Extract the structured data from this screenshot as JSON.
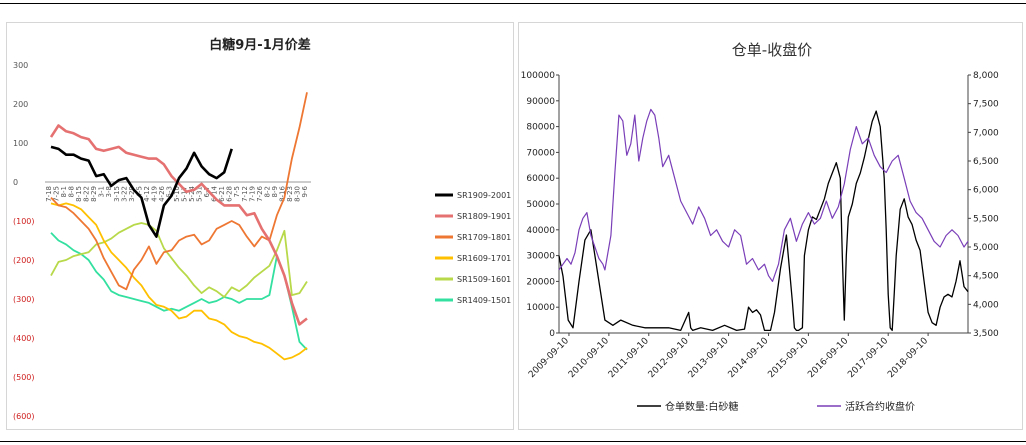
{
  "chart_data": [
    {
      "type": "line",
      "title": "白糖9月-1月价差",
      "ylim": [
        -600,
        300
      ],
      "yticks": [
        "300",
        "200",
        "100",
        "0",
        "(100)",
        "(200)",
        "(300)",
        "(400)",
        "(500)",
        "(600)"
      ],
      "ytick_values": [
        300,
        200,
        100,
        0,
        -100,
        -200,
        -300,
        -400,
        -500,
        -600
      ],
      "categories": [
        "7-18",
        "7-25",
        "8-1",
        "8-8",
        "8-15",
        "8-22",
        "8-29",
        "3-1",
        "3-8",
        "3-15",
        "3-22",
        "3-29",
        "4-5",
        "4-12",
        "4-19",
        "4-26",
        "5-3",
        "5-10",
        "5-17",
        "5-24",
        "5-31",
        "6-7",
        "6-14",
        "6-21",
        "6-28",
        "7-5",
        "7-12",
        "7-19",
        "7-26",
        "8-2",
        "8-9",
        "8-16",
        "8-23",
        "8-30",
        "9-6"
      ],
      "series": [
        {
          "name": "SR1909-2001",
          "color": "#000000",
          "width": 2.6,
          "values": [
            90,
            85,
            70,
            70,
            60,
            55,
            15,
            20,
            -10,
            5,
            10,
            -20,
            -40,
            -110,
            -140,
            -60,
            -35,
            10,
            35,
            75,
            40,
            20,
            10,
            25,
            85,
            null,
            null,
            null,
            null,
            null,
            null,
            null,
            null,
            null,
            null
          ]
        },
        {
          "name": "SR1809-1901",
          "color": "#e57171",
          "width": 2.6,
          "values": [
            115,
            145,
            130,
            125,
            115,
            110,
            85,
            80,
            85,
            90,
            75,
            70,
            65,
            60,
            60,
            45,
            15,
            -5,
            -25,
            -20,
            -5,
            -25,
            -45,
            -60,
            -60,
            -60,
            -85,
            -80,
            -120,
            -150,
            -190,
            -240,
            -310,
            -365,
            -350
          ]
        },
        {
          "name": "SR1709-1801",
          "color": "#ee7733",
          "width": 1.8,
          "values": [
            -40,
            -60,
            -65,
            -80,
            -100,
            -120,
            -150,
            -195,
            -230,
            -265,
            -275,
            -225,
            -200,
            -165,
            -210,
            -180,
            -175,
            -150,
            -140,
            -135,
            -160,
            -150,
            -120,
            -110,
            -100,
            -110,
            -140,
            -165,
            -140,
            -150,
            -85,
            -40,
            60,
            140,
            230
          ]
        },
        {
          "name": "SR1609-1701",
          "color": "#ffc000",
          "width": 1.8,
          "values": [
            -55,
            -60,
            -55,
            -60,
            -70,
            -90,
            -110,
            -150,
            -180,
            -200,
            -220,
            -245,
            -265,
            -295,
            -315,
            -320,
            -330,
            -350,
            -345,
            -330,
            -330,
            -350,
            -355,
            -365,
            -385,
            -395,
            -400,
            -410,
            -415,
            -425,
            -440,
            -455,
            -450,
            -440,
            -425
          ]
        },
        {
          "name": "SR1509-1601",
          "color": "#b8d94a",
          "width": 1.8,
          "values": [
            -240,
            -205,
            -200,
            -190,
            -185,
            -180,
            -160,
            -155,
            -145,
            -130,
            -120,
            -110,
            -105,
            -110,
            -125,
            -170,
            -195,
            -220,
            -240,
            -265,
            -285,
            -270,
            -280,
            -295,
            -270,
            -280,
            -265,
            -245,
            -230,
            -215,
            -175,
            -125,
            -290,
            -285,
            -255
          ]
        },
        {
          "name": "SR1409-1501",
          "color": "#33e0a0",
          "width": 1.8,
          "values": [
            -130,
            -150,
            -160,
            -175,
            -185,
            -200,
            -230,
            -250,
            -280,
            -290,
            -295,
            -300,
            -305,
            -310,
            -320,
            -330,
            -325,
            -330,
            -320,
            -310,
            -300,
            -310,
            -305,
            -295,
            -300,
            -310,
            -300,
            -300,
            -300,
            -290,
            -190,
            -240,
            -320,
            -410,
            -430
          ]
        }
      ]
    },
    {
      "type": "line",
      "title": "仓单-收盘价",
      "ylim_left": [
        0,
        100000
      ],
      "ylim_right": [
        3500,
        8000
      ],
      "yticks_left": [
        "100000",
        "90000",
        "80000",
        "70000",
        "60000",
        "50000",
        "40000",
        "30000",
        "20000",
        "10000",
        "0"
      ],
      "yticks_left_values": [
        100000,
        90000,
        80000,
        70000,
        60000,
        50000,
        40000,
        30000,
        20000,
        10000,
        0
      ],
      "yticks_right": [
        "8,000",
        "7,500",
        "7,000",
        "6,500",
        "6,000",
        "5,500",
        "5,000",
        "4,500",
        "4,000",
        "3,500"
      ],
      "yticks_right_values": [
        8000,
        7500,
        7000,
        6500,
        6000,
        5500,
        5000,
        4500,
        4000,
        3500
      ],
      "categories": [
        "2009-09-10",
        "2010-09-10",
        "2011-09-10",
        "2012-09-10",
        "2013-09-10",
        "2014-09-10",
        "2015-09-10",
        "2016-09-10",
        "2017-09-10",
        "2018-09-10"
      ],
      "x_start": 2009.45,
      "x_end": 2019.7,
      "category_positions": [
        2009.7,
        2010.7,
        2011.7,
        2012.7,
        2013.7,
        2014.7,
        2015.7,
        2016.7,
        2017.7,
        2018.7
      ],
      "series": [
        {
          "name": "仓单数量:白砂糖",
          "color": "#000000",
          "axis": "left",
          "x": [
            2009.45,
            2009.55,
            2009.68,
            2009.8,
            2009.95,
            2010.1,
            2010.25,
            2010.35,
            2010.45,
            2010.6,
            2010.8,
            2011.0,
            2011.3,
            2011.6,
            2011.9,
            2012.2,
            2012.5,
            2012.7,
            2012.75,
            2012.8,
            2013.0,
            2013.3,
            2013.6,
            2013.9,
            2014.1,
            2014.2,
            2014.3,
            2014.4,
            2014.5,
            2014.6,
            2014.75,
            2014.85,
            2015.0,
            2015.15,
            2015.3,
            2015.35,
            2015.4,
            2015.45,
            2015.55,
            2015.6,
            2015.7,
            2015.8,
            2015.9,
            2016.0,
            2016.1,
            2016.2,
            2016.3,
            2016.4,
            2016.5,
            2016.55,
            2016.6,
            2016.65,
            2016.7,
            2016.8,
            2016.9,
            2017.0,
            2017.1,
            2017.2,
            2017.3,
            2017.4,
            2017.5,
            2017.6,
            2017.65,
            2017.7,
            2017.75,
            2017.8,
            2017.85,
            2017.9,
            2018.0,
            2018.1,
            2018.2,
            2018.3,
            2018.4,
            2018.5,
            2018.6,
            2018.7,
            2018.8,
            2018.9,
            2019.0,
            2019.1,
            2019.2,
            2019.3,
            2019.4,
            2019.5,
            2019.6,
            2019.7
          ],
          "y": [
            30000,
            22000,
            5000,
            2000,
            20000,
            36000,
            40000,
            30000,
            20000,
            5000,
            3000,
            5000,
            3000,
            2000,
            2000,
            2000,
            1000,
            8000,
            2000,
            1000,
            2000,
            1000,
            3000,
            1000,
            1500,
            10000,
            8000,
            9000,
            7000,
            1000,
            1000,
            8000,
            25000,
            38000,
            12000,
            2000,
            1000,
            1000,
            2000,
            30000,
            40000,
            45000,
            44000,
            48000,
            52000,
            58000,
            62000,
            66000,
            60000,
            30000,
            5000,
            30000,
            45000,
            50000,
            58000,
            62000,
            68000,
            75000,
            82000,
            86000,
            80000,
            60000,
            40000,
            15000,
            2000,
            1000,
            15000,
            30000,
            48000,
            52000,
            45000,
            42000,
            36000,
            32000,
            20000,
            8000,
            4000,
            3000,
            10000,
            14000,
            15000,
            14000,
            20000,
            28000,
            18000,
            16000
          ]
        },
        {
          "name": "活跃合约收盘价",
          "color": "#7a3fb8",
          "axis": "right",
          "x": [
            2009.45,
            2009.55,
            2009.65,
            2009.75,
            2009.85,
            2009.95,
            2010.05,
            2010.15,
            2010.25,
            2010.35,
            2010.45,
            2010.55,
            2010.6,
            2010.65,
            2010.75,
            2010.85,
            2010.95,
            2011.05,
            2011.15,
            2011.25,
            2011.35,
            2011.45,
            2011.55,
            2011.65,
            2011.75,
            2011.85,
            2011.95,
            2012.05,
            2012.2,
            2012.35,
            2012.5,
            2012.65,
            2012.8,
            2012.95,
            2013.1,
            2013.25,
            2013.4,
            2013.55,
            2013.7,
            2013.85,
            2014.0,
            2014.15,
            2014.3,
            2014.45,
            2014.6,
            2014.7,
            2014.8,
            2014.95,
            2015.1,
            2015.25,
            2015.4,
            2015.55,
            2015.7,
            2015.85,
            2016.0,
            2016.15,
            2016.3,
            2016.45,
            2016.6,
            2016.75,
            2016.9,
            2017.05,
            2017.2,
            2017.35,
            2017.5,
            2017.65,
            2017.8,
            2017.95,
            2018.1,
            2018.25,
            2018.4,
            2018.55,
            2018.7,
            2018.85,
            2019.0,
            2019.15,
            2019.3,
            2019.45,
            2019.6,
            2019.7
          ],
          "y": [
            4600,
            4700,
            4800,
            4700,
            4900,
            5300,
            5500,
            5600,
            5200,
            5000,
            4800,
            4700,
            4600,
            4800,
            5200,
            6300,
            7300,
            7200,
            6600,
            6800,
            7300,
            6500,
            6900,
            7200,
            7400,
            7300,
            6900,
            6400,
            6600,
            6200,
            5800,
            5600,
            5400,
            5700,
            5500,
            5200,
            5300,
            5100,
            5000,
            5300,
            5200,
            4700,
            4800,
            4600,
            4700,
            4500,
            4400,
            4700,
            5300,
            5500,
            5100,
            5400,
            5600,
            5400,
            5500,
            5800,
            5500,
            5700,
            6100,
            6700,
            7100,
            6800,
            6900,
            6600,
            6400,
            6300,
            6500,
            6600,
            6200,
            5800,
            5600,
            5500,
            5300,
            5100,
            5000,
            5200,
            5300,
            5200,
            5000,
            5100
          ]
        }
      ]
    }
  ]
}
